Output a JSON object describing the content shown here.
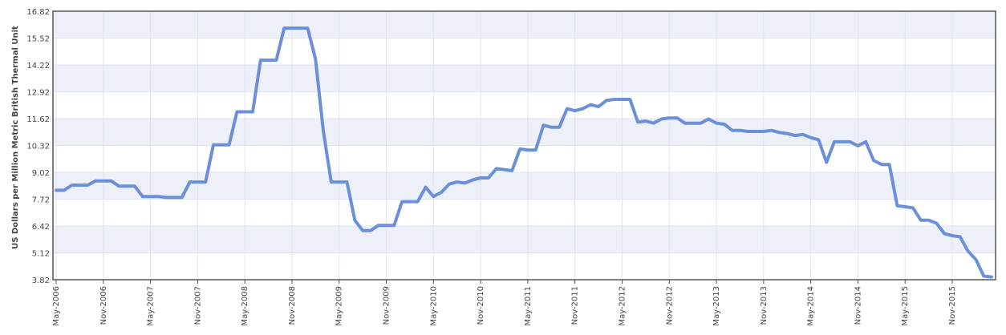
{
  "chart_data": {
    "type": "line",
    "title": "",
    "xlabel": "",
    "ylabel": "US Dollars per Million Metric British Thermal Unit",
    "ylim": [
      3.82,
      16.82
    ],
    "yticks": [
      "3.82",
      "5.12",
      "6.42",
      "7.72",
      "9.02",
      "10.32",
      "11.62",
      "12.92",
      "14.22",
      "15.52",
      "16.82"
    ],
    "xticks": [
      "May-2006",
      "Nov-2006",
      "May-2007",
      "Nov-2007",
      "May-2008",
      "Nov-2008",
      "May-2009",
      "Nov-2009",
      "May-2010",
      "Nov-2010",
      "May-2011",
      "Nov-2011",
      "May-2012",
      "Nov-2012",
      "May-2013",
      "Nov-2013",
      "May-2014",
      "Nov-2014",
      "May-2015",
      "Nov-2015"
    ],
    "grid": true,
    "legend": "none",
    "line_color": "#6b8fd8",
    "band_color": "#eef0f9",
    "x_start": "May-2006",
    "x_step": "month",
    "values": [
      8.15,
      8.15,
      8.4,
      8.4,
      8.4,
      8.6,
      8.6,
      8.6,
      8.35,
      8.35,
      8.35,
      7.85,
      7.85,
      7.85,
      7.8,
      7.8,
      7.8,
      8.55,
      8.55,
      8.55,
      10.35,
      10.35,
      10.35,
      11.95,
      11.95,
      11.95,
      14.45,
      14.45,
      14.45,
      16.0,
      16.0,
      16.0,
      16.0,
      14.5,
      11.0,
      8.55,
      8.55,
      8.55,
      6.7,
      6.2,
      6.2,
      6.45,
      6.45,
      6.45,
      7.6,
      7.6,
      7.6,
      8.3,
      7.85,
      8.05,
      8.45,
      8.55,
      8.5,
      8.65,
      8.75,
      8.75,
      9.2,
      9.15,
      9.1,
      10.15,
      10.1,
      10.1,
      11.3,
      11.2,
      11.2,
      12.1,
      12.0,
      12.1,
      12.3,
      12.2,
      12.5,
      12.55,
      12.55,
      12.55,
      11.45,
      11.5,
      11.4,
      11.6,
      11.65,
      11.65,
      11.4,
      11.4,
      11.4,
      11.6,
      11.4,
      11.35,
      11.05,
      11.05,
      11.0,
      11.0,
      11.0,
      11.05,
      10.95,
      10.9,
      10.8,
      10.85,
      10.7,
      10.6,
      9.5,
      10.5,
      10.5,
      10.5,
      10.3,
      10.5,
      9.6,
      9.4,
      9.4,
      7.4,
      7.35,
      7.3,
      6.7,
      6.7,
      6.55,
      6.05,
      5.95,
      5.9,
      5.2,
      4.8,
      4.0,
      3.95
    ]
  }
}
